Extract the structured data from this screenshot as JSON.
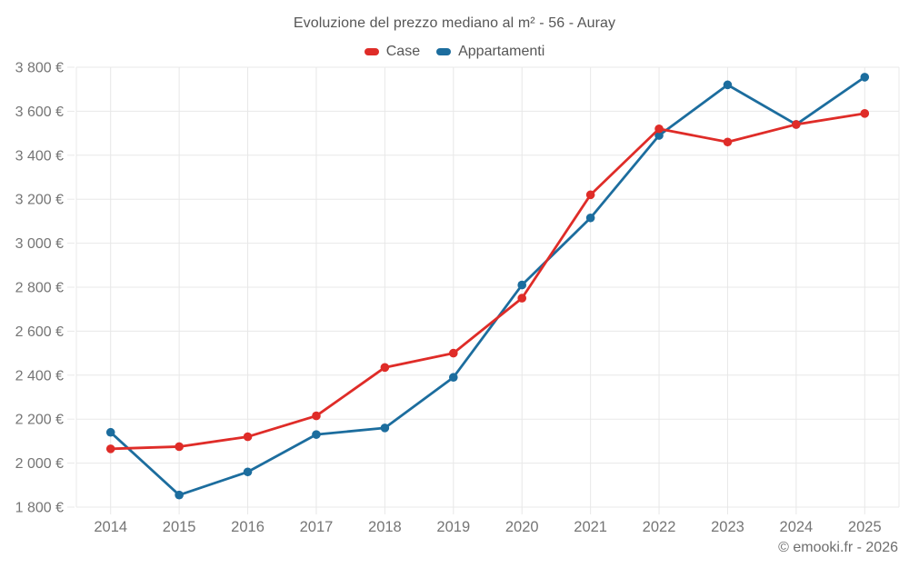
{
  "title": "Evoluzione del prezzo mediano al m² - 56 - Auray",
  "footer_credit": "© emooki.fr - 2026",
  "legend": [
    {
      "label": "Case",
      "color": "#df2c28"
    },
    {
      "label": "Appartamenti",
      "color": "#1c6d9e"
    }
  ],
  "colors": {
    "grid": "#e8e8e8",
    "tick_text": "#757575",
    "title_text": "#565656",
    "background": "#ffffff"
  },
  "chart_data": {
    "type": "line",
    "title": "Evoluzione del prezzo mediano al m² - 56 - Auray",
    "categories": [
      "2014",
      "2015",
      "2016",
      "2017",
      "2018",
      "2019",
      "2020",
      "2021",
      "2022",
      "2023",
      "2024",
      "2025"
    ],
    "series": [
      {
        "name": "Case",
        "color": "#df2c28",
        "values": [
          2065,
          2075,
          2120,
          2215,
          2435,
          2500,
          2750,
          3220,
          3520,
          3460,
          3540,
          3590
        ]
      },
      {
        "name": "Appartamenti",
        "color": "#1c6d9e",
        "values": [
          2140,
          1855,
          1960,
          2130,
          2160,
          2390,
          2810,
          3115,
          3490,
          3720,
          3540,
          3755
        ]
      }
    ],
    "xlabel": "",
    "ylabel": "",
    "ylim": [
      1800,
      3800
    ],
    "ytick_step": 200,
    "ytick_suffix": "€",
    "grid": true,
    "legend_position": "top",
    "unit": "€/m²"
  }
}
